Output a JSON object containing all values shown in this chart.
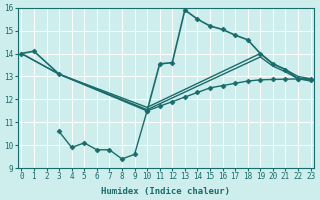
{
  "xlabel": "Humidex (Indice chaleur)",
  "bg_color": "#ceeeed",
  "line_color": "#1a6b6b",
  "grid_color": "#ffffff",
  "lines": [
    {
      "x": [
        0,
        1,
        3,
        10,
        11,
        12,
        13,
        14,
        15,
        16,
        17,
        18,
        19,
        20,
        21,
        22,
        23
      ],
      "y": [
        14.0,
        14.1,
        13.1,
        11.5,
        13.55,
        13.6,
        15.9,
        15.5,
        15.2,
        15.05,
        14.8,
        14.6,
        14.0,
        13.55,
        13.3,
        12.9,
        12.85
      ],
      "marker": "D",
      "markersize": 2.5,
      "linewidth": 1.2
    },
    {
      "x": [
        0,
        3,
        10,
        19,
        20,
        21,
        22,
        23
      ],
      "y": [
        14.0,
        13.1,
        11.65,
        14.0,
        13.55,
        13.3,
        13.0,
        12.9
      ],
      "marker": null,
      "linewidth": 1.0
    },
    {
      "x": [
        0,
        3,
        10,
        19,
        20,
        21,
        22,
        23
      ],
      "y": [
        14.0,
        13.1,
        11.55,
        13.85,
        13.45,
        13.2,
        12.9,
        12.8
      ],
      "marker": null,
      "linewidth": 1.0
    },
    {
      "x": [
        3,
        4,
        5,
        6,
        7,
        8,
        9,
        10,
        11,
        12,
        13,
        14,
        15,
        16,
        17,
        18,
        19,
        20,
        21,
        22,
        23
      ],
      "y": [
        10.6,
        9.9,
        10.1,
        9.8,
        9.8,
        9.4,
        9.6,
        11.5,
        11.7,
        11.9,
        12.1,
        12.3,
        12.5,
        12.6,
        12.7,
        12.8,
        12.85,
        12.87,
        12.88,
        12.89,
        12.9
      ],
      "marker": "D",
      "markersize": 2.5,
      "linewidth": 1.0
    }
  ],
  "xlim": [
    -0.3,
    23.3
  ],
  "ylim": [
    9,
    16
  ],
  "yticks": [
    9,
    10,
    11,
    12,
    13,
    14,
    15,
    16
  ],
  "xticks": [
    0,
    1,
    2,
    3,
    4,
    5,
    6,
    7,
    8,
    9,
    10,
    11,
    12,
    13,
    14,
    15,
    16,
    17,
    18,
    19,
    20,
    21,
    22,
    23
  ]
}
